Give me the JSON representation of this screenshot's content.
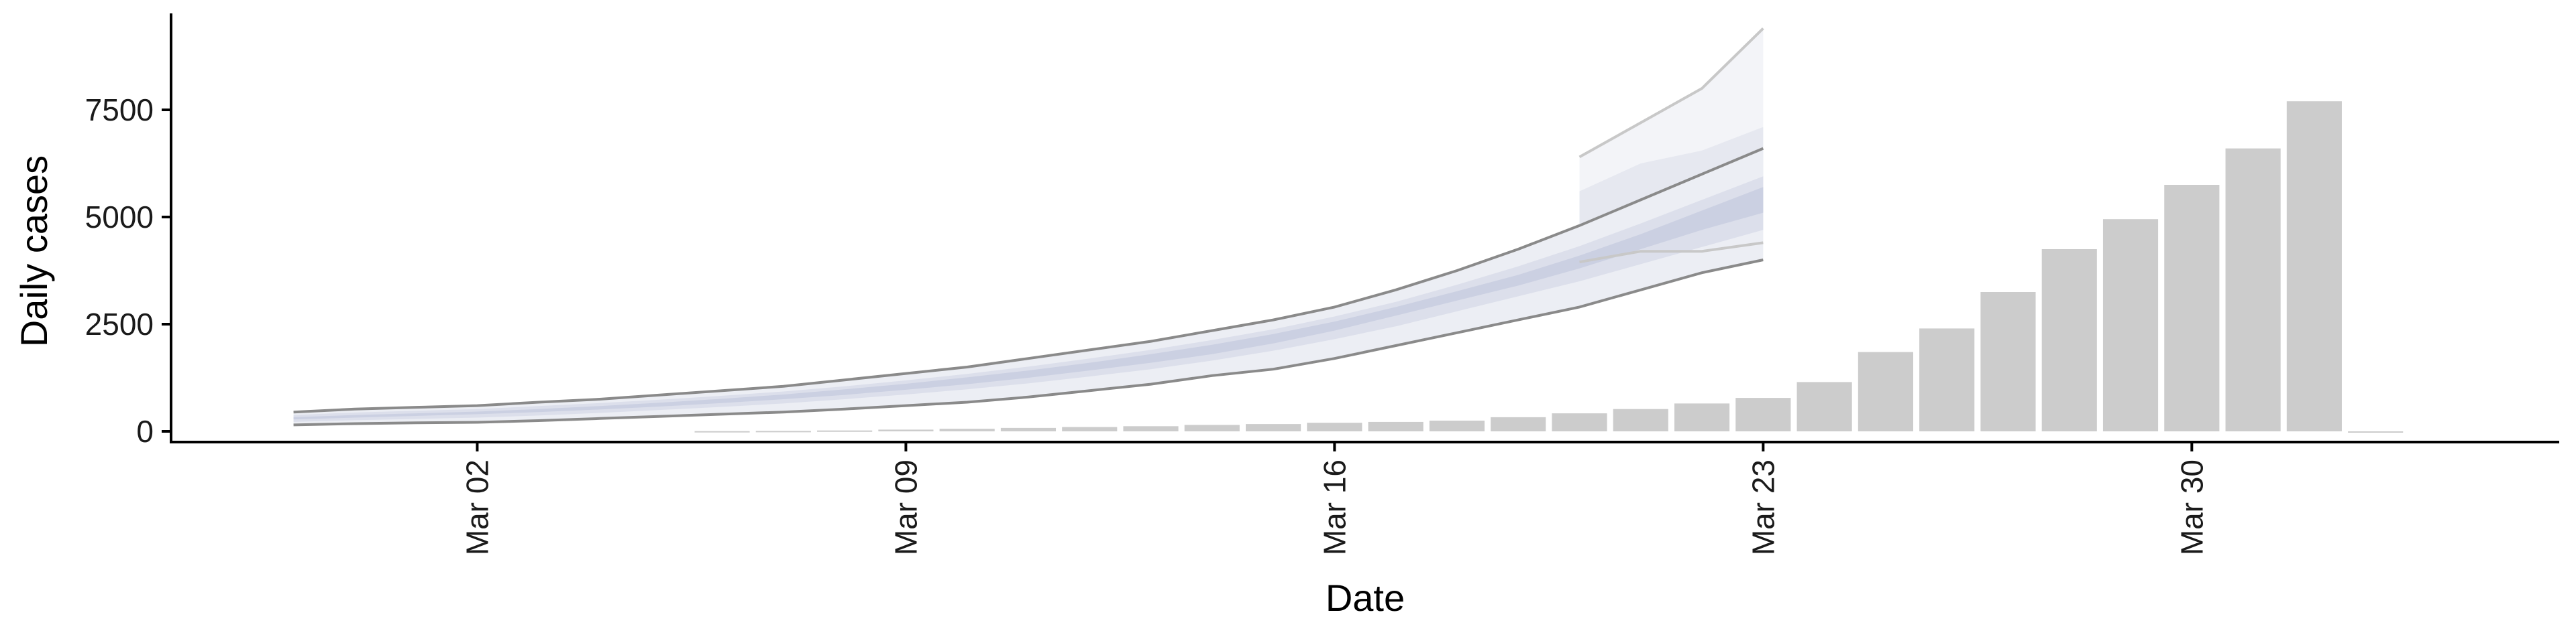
{
  "chart_data": {
    "type": "bar",
    "title": "",
    "xlabel": "Date",
    "ylabel": "Daily cases",
    "ylim": [
      -250,
      9750
    ],
    "yticks": [
      0,
      2500,
      5000,
      7500
    ],
    "xlim": [
      "2020-02-26",
      "2020-04-05"
    ],
    "xticks": [
      {
        "date": "2020-03-02",
        "label": "Mar 02"
      },
      {
        "date": "2020-03-09",
        "label": "Mar 09"
      },
      {
        "date": "2020-03-16",
        "label": "Mar 16"
      },
      {
        "date": "2020-03-23",
        "label": "Mar 23"
      },
      {
        "date": "2020-03-30",
        "label": "Mar 30"
      }
    ],
    "grid": false,
    "legend": "none",
    "bars": {
      "color": "#cccccc",
      "dates": [
        "2020-03-06",
        "2020-03-07",
        "2020-03-08",
        "2020-03-09",
        "2020-03-10",
        "2020-03-11",
        "2020-03-12",
        "2020-03-13",
        "2020-03-14",
        "2020-03-15",
        "2020-03-16",
        "2020-03-17",
        "2020-03-18",
        "2020-03-19",
        "2020-03-20",
        "2020-03-21",
        "2020-03-22",
        "2020-03-23",
        "2020-03-24",
        "2020-03-25",
        "2020-03-26",
        "2020-03-27",
        "2020-03-28",
        "2020-03-29",
        "2020-03-30",
        "2020-03-31",
        "2020-04-01",
        "2020-04-02"
      ],
      "values": [
        5,
        10,
        20,
        40,
        60,
        80,
        100,
        120,
        150,
        170,
        200,
        220,
        250,
        330,
        420,
        520,
        650,
        780,
        1150,
        1850,
        2400,
        3250,
        4250,
        4950,
        5750,
        6600,
        7700,
        0
      ]
    },
    "forecast": {
      "dates": [
        "2020-02-28",
        "2020-02-29",
        "2020-03-01",
        "2020-03-02",
        "2020-03-03",
        "2020-03-04",
        "2020-03-05",
        "2020-03-06",
        "2020-03-07",
        "2020-03-08",
        "2020-03-09",
        "2020-03-10",
        "2020-03-11",
        "2020-03-12",
        "2020-03-13",
        "2020-03-14",
        "2020-03-15",
        "2020-03-16",
        "2020-03-17",
        "2020-03-18",
        "2020-03-19",
        "2020-03-20",
        "2020-03-21",
        "2020-03-22",
        "2020-03-23"
      ],
      "outer_low": [
        150,
        180,
        200,
        210,
        250,
        300,
        350,
        400,
        450,
        520,
        600,
        680,
        800,
        950,
        1100,
        1300,
        1450,
        1700,
        2000,
        2300,
        2600,
        2900,
        3300,
        3700,
        4000
      ],
      "outer_high": [
        450,
        520,
        560,
        600,
        680,
        750,
        850,
        950,
        1050,
        1200,
        1350,
        1500,
        1700,
        1900,
        2100,
        2350,
        2600,
        2900,
        3300,
        3750,
        4250,
        4800,
        5400,
        6000,
        6600
      ],
      "mid_low": [
        220,
        260,
        290,
        320,
        370,
        430,
        500,
        570,
        650,
        750,
        860,
        980,
        1120,
        1280,
        1450,
        1650,
        1880,
        2150,
        2450,
        2800,
        3150,
        3500,
        3900,
        4300,
        4700
      ],
      "mid_high": [
        380,
        440,
        480,
        520,
        590,
        660,
        740,
        830,
        930,
        1050,
        1190,
        1340,
        1510,
        1700,
        1900,
        2130,
        2380,
        2680,
        3020,
        3420,
        3850,
        4320,
        4850,
        5400,
        5950
      ],
      "inner_low": [
        280,
        320,
        360,
        400,
        450,
        510,
        580,
        660,
        750,
        850,
        970,
        1100,
        1250,
        1420,
        1600,
        1800,
        2050,
        2350,
        2700,
        3050,
        3400,
        3800,
        4250,
        4700,
        5100
      ],
      "inner_high": [
        330,
        380,
        420,
        460,
        520,
        590,
        670,
        760,
        860,
        980,
        1110,
        1260,
        1420,
        1600,
        1800,
        2020,
        2270,
        2560,
        2900,
        3270,
        3650,
        4100,
        4600,
        5150,
        5700
      ],
      "ext_dates": [
        "2020-03-20",
        "2020-03-21",
        "2020-03-22",
        "2020-03-23"
      ],
      "ext_low": [
        3950,
        4200,
        4200,
        4400
      ],
      "ext_high": [
        6400,
        7200,
        8000,
        9400
      ],
      "ext_mid_low": [
        4600,
        5100,
        5100,
        5300
      ],
      "ext_mid_high": [
        5600,
        6250,
        6550,
        7100
      ],
      "fill_outer": "#eceef4",
      "fill_mid": "#dcdfeb",
      "fill_inner": "#cbd0e2",
      "fill_ext_outer": "#f3f4f8",
      "fill_ext_mid": "#e6e8f0",
      "line_color": "#8a8a8a",
      "ext_line_color": "#c8c8c8"
    }
  }
}
